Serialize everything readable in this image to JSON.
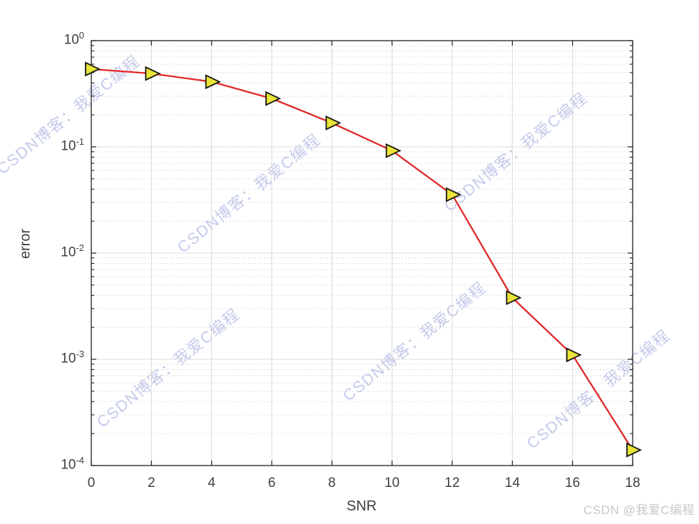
{
  "watermark": {
    "text": "CSDN博客：我爱C编程",
    "color_rgba": "rgba(148,159,216,0.55)"
  },
  "credit": {
    "text": "CSDN @我爱C编程",
    "color": "#c7c7c7"
  },
  "chart_data": {
    "type": "line",
    "title": "",
    "xlabel": "SNR",
    "ylabel": "error",
    "yscale": "log",
    "x": [
      0,
      2,
      4,
      6,
      8,
      10,
      12,
      14,
      16,
      18
    ],
    "y": [
      0.54,
      0.49,
      0.41,
      0.285,
      0.168,
      0.092,
      0.0355,
      0.0038,
      0.0011,
      0.00014
    ],
    "series_name": "error vs SNR",
    "xlim": [
      0,
      18
    ],
    "ylim": [
      0.0001,
      1
    ],
    "x_tick_labels": [
      "0",
      "2",
      "4",
      "6",
      "8",
      "10",
      "12",
      "14",
      "16",
      "18"
    ],
    "y_tick_base": "10",
    "y_tick_exponents": [
      "0",
      "-1",
      "-2",
      "-3",
      "-4"
    ],
    "grid": {
      "major": true,
      "minor_log_dotted": true
    },
    "legend": "none",
    "colors": {
      "line": "#e02828",
      "marker_fill": "#e9e436",
      "marker_edge": "#151515",
      "axis": "#1f1f1f",
      "grid_major": "#dbdbdb",
      "grid_minor": "#d6d6d6",
      "tick_label": "#404040"
    },
    "marker_shape": "triangle-right"
  }
}
